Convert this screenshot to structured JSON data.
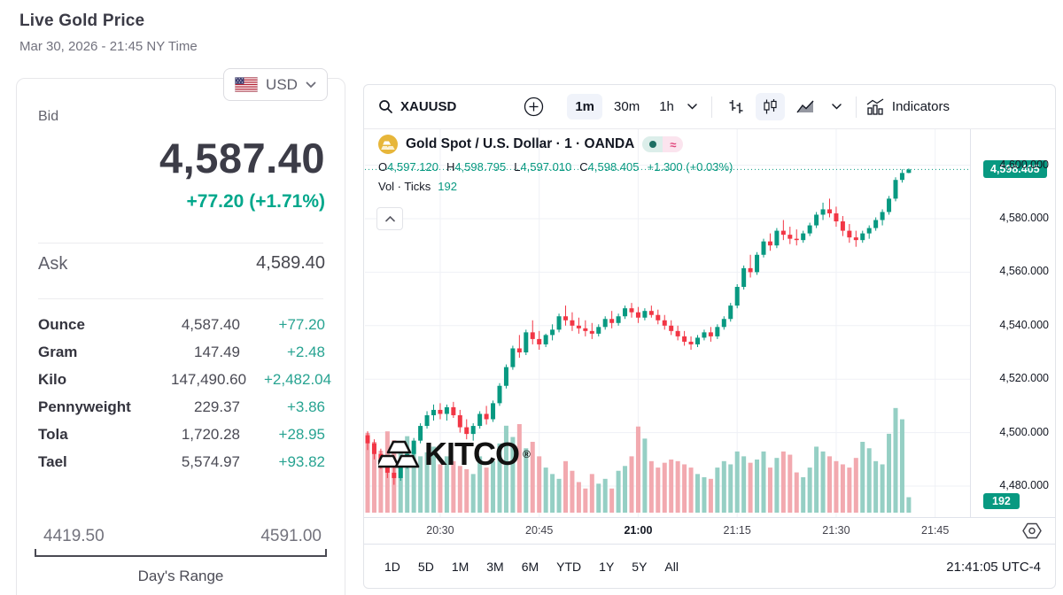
{
  "header": {
    "title": "Live Gold Price",
    "subtitle": "Mar 30, 2026 - 21:45 NY Time"
  },
  "currency_selector": {
    "label": "USD"
  },
  "quote": {
    "bid_label": "Bid",
    "bid": "4,587.40",
    "change": "+77.20 (+1.71%)",
    "ask_label": "Ask",
    "ask": "4,589.40",
    "units": [
      {
        "name": "Ounce",
        "value": "4,587.40",
        "change": "+77.20"
      },
      {
        "name": "Gram",
        "value": "147.49",
        "change": "+2.48"
      },
      {
        "name": "Kilo",
        "value": "147,490.60",
        "change": "+2,482.04"
      },
      {
        "name": "Pennyweight",
        "value": "229.37",
        "change": "+3.86"
      },
      {
        "name": "Tola",
        "value": "1,720.28",
        "change": "+28.95"
      },
      {
        "name": "Tael",
        "value": "5,574.97",
        "change": "+93.82"
      }
    ],
    "range": {
      "low": "4419.50",
      "high": "4591.00",
      "label": "Day's Range"
    }
  },
  "chart": {
    "toolbar": {
      "symbol": "XAUUSD",
      "intervals": [
        "1m",
        "30m",
        "1h"
      ],
      "active_interval": "1m",
      "indicators_label": "Indicators"
    },
    "legend": {
      "title": "Gold Spot / U.S. Dollar · 1 · OANDA",
      "approx_badge": "≈",
      "ohlc_items": [
        {
          "k": "O",
          "v": "4,597.120"
        },
        {
          "k": "H",
          "v": "4,598.795"
        },
        {
          "k": "L",
          "v": "4,597.010"
        },
        {
          "k": "C",
          "v": "4,598.405"
        }
      ],
      "change": "+1.300 (+0.03%)",
      "vol_label": "Vol · Ticks",
      "vol_value": "192"
    },
    "watermark": {
      "text": "KITCO",
      "reg": "®"
    },
    "price_axis": {
      "labels": [
        "4,600.000",
        "4,580.000",
        "4,560.000",
        "4,540.000",
        "4,520.000",
        "4,500.000",
        "4,480.000"
      ],
      "last_price": "4,598.405",
      "vol_badge": "192"
    },
    "time_axis": [
      "20:30",
      "20:45",
      "21:00",
      "21:15",
      "21:30",
      "21:45"
    ],
    "bold_time": "21:00",
    "ranges": [
      "1D",
      "5D",
      "1M",
      "3M",
      "6M",
      "YTD",
      "1Y",
      "5Y",
      "All"
    ],
    "clock": "21:41:05 UTC-4"
  },
  "chart_data": {
    "type": "candlestick+volume",
    "symbol": "XAUUSD",
    "interval": "1m",
    "x_start": "20:19",
    "x_end": "21:41",
    "ylim": [
      4470,
      4605
    ],
    "price_gridlines": [
      4600,
      4580,
      4560,
      4540,
      4520,
      4500,
      4480
    ],
    "time_gridlines": [
      "20:30",
      "20:45",
      "21:00",
      "21:15",
      "21:30",
      "21:45"
    ],
    "last_close": 4598.405,
    "last_bar": {
      "o": 4597.12,
      "h": 4598.795,
      "l": 4597.01,
      "c": 4598.405,
      "ticks": 192
    },
    "candles": [
      [
        4499,
        4500.5,
        4493.5,
        4496
      ],
      [
        4496,
        4497.5,
        4490,
        4492
      ],
      [
        4492,
        4494,
        4486.5,
        4489
      ],
      [
        4489,
        4490.5,
        4483,
        4485
      ],
      [
        4485,
        4487,
        4480.5,
        4483
      ],
      [
        4483,
        4488.5,
        4482,
        4487.5
      ],
      [
        4487.5,
        4493,
        4486.5,
        4492
      ],
      [
        4492,
        4498,
        4491,
        4497
      ],
      [
        4497,
        4503.5,
        4496,
        4502.5
      ],
      [
        4502.5,
        4508,
        4501.5,
        4506.5
      ],
      [
        4506.5,
        4510.5,
        4504.5,
        4508.5
      ],
      [
        4508.5,
        4511,
        4505,
        4507
      ],
      [
        4507,
        4510.5,
        4504.5,
        4509.5
      ],
      [
        4509.5,
        4511.5,
        4505.5,
        4506.5
      ],
      [
        4506.5,
        4508.5,
        4500,
        4502
      ],
      [
        4502,
        4505,
        4497.5,
        4499.5
      ],
      [
        4499.5,
        4503.5,
        4497,
        4502.5
      ],
      [
        4502.5,
        4508,
        4501.5,
        4507
      ],
      [
        4507,
        4510,
        4503,
        4505
      ],
      [
        4505,
        4512,
        4504,
        4511
      ],
      [
        4511,
        4518.5,
        4510,
        4517.5
      ],
      [
        4517.5,
        4525.5,
        4516.5,
        4524.5
      ],
      [
        4524.5,
        4532.5,
        4523.5,
        4531.5
      ],
      [
        4531.5,
        4536.5,
        4528,
        4530
      ],
      [
        4530,
        4538.5,
        4529,
        4537.5
      ],
      [
        4537.5,
        4542,
        4533,
        4535
      ],
      [
        4535,
        4538,
        4531,
        4533
      ],
      [
        4533,
        4537,
        4532,
        4536.5
      ],
      [
        4536.5,
        4540.5,
        4534.5,
        4538.5
      ],
      [
        4538.5,
        4544.5,
        4537.5,
        4543.5
      ],
      [
        4543.5,
        4547.5,
        4540,
        4542
      ],
      [
        4542,
        4545,
        4538,
        4540
      ],
      [
        4540,
        4543,
        4537,
        4539
      ],
      [
        4539,
        4542,
        4536,
        4538
      ],
      [
        4538,
        4541,
        4535,
        4537
      ],
      [
        4537,
        4540.5,
        4536,
        4539.5
      ],
      [
        4539.5,
        4543.5,
        4538.5,
        4542.5
      ],
      [
        4542.5,
        4545.5,
        4539,
        4541
      ],
      [
        4541,
        4544.5,
        4540,
        4543.5
      ],
      [
        4543.5,
        4547.5,
        4542.5,
        4546.5
      ],
      [
        4546.5,
        4548.5,
        4543,
        4545
      ],
      [
        4545,
        4547,
        4541,
        4543
      ],
      [
        4543,
        4546.5,
        4542,
        4545.5
      ],
      [
        4545.5,
        4547.5,
        4543,
        4544
      ],
      [
        4544,
        4546,
        4540.5,
        4542
      ],
      [
        4542,
        4544,
        4538.5,
        4540
      ],
      [
        4540,
        4542,
        4536.5,
        4538
      ],
      [
        4538,
        4540,
        4534.5,
        4536
      ],
      [
        4536,
        4538,
        4532.5,
        4534
      ],
      [
        4534,
        4536,
        4531,
        4533
      ],
      [
        4533,
        4536.5,
        4532,
        4535.5
      ],
      [
        4535.5,
        4538.5,
        4534.5,
        4537.5
      ],
      [
        4537.5,
        4539.5,
        4534,
        4536
      ],
      [
        4536,
        4540.5,
        4535,
        4539.5
      ],
      [
        4539.5,
        4543.5,
        4538.5,
        4542.5
      ],
      [
        4542.5,
        4548.5,
        4541.5,
        4547.5
      ],
      [
        4547.5,
        4555.5,
        4546.5,
        4554.5
      ],
      [
        4554.5,
        4562.5,
        4553.5,
        4561.5
      ],
      [
        4561.5,
        4566.5,
        4558,
        4560
      ],
      [
        4560,
        4567.5,
        4559,
        4566.5
      ],
      [
        4566.5,
        4572.5,
        4565.5,
        4571.5
      ],
      [
        4571.5,
        4574.5,
        4568,
        4570
      ],
      [
        4570,
        4576.5,
        4569,
        4575.5
      ],
      [
        4575.5,
        4579.5,
        4572,
        4574
      ],
      [
        4574,
        4577,
        4570.5,
        4572.5
      ],
      [
        4572.5,
        4576,
        4570,
        4572
      ],
      [
        4572,
        4575.5,
        4571,
        4574.5
      ],
      [
        4574.5,
        4578.5,
        4573.5,
        4577.5
      ],
      [
        4577.5,
        4582.5,
        4576.5,
        4581.5
      ],
      [
        4581.5,
        4586,
        4579.5,
        4583.5
      ],
      [
        4583.5,
        4587.5,
        4580.5,
        4582
      ],
      [
        4582,
        4584.5,
        4577,
        4579
      ],
      [
        4579,
        4581,
        4573.5,
        4575.5
      ],
      [
        4575.5,
        4578,
        4571,
        4573
      ],
      [
        4573,
        4575.5,
        4569.5,
        4572
      ],
      [
        4572,
        4575.5,
        4571,
        4574.5
      ],
      [
        4574.5,
        4577.5,
        4572.5,
        4576.5
      ],
      [
        4576.5,
        4580.5,
        4575.5,
        4579.5
      ],
      [
        4579.5,
        4583.5,
        4577.5,
        4582.5
      ],
      [
        4582.5,
        4588.5,
        4581.5,
        4587.5
      ],
      [
        4587.5,
        4595.5,
        4586.5,
        4594.5
      ],
      [
        4594.5,
        4598.5,
        4593.5,
        4597.1
      ],
      [
        4597.12,
        4598.795,
        4597.01,
        4598.405
      ]
    ],
    "volumes": [
      990,
      880,
      770,
      1010,
      900,
      850,
      950,
      820,
      700,
      750,
      820,
      600,
      700,
      640,
      580,
      540,
      480,
      700,
      560,
      640,
      860,
      1080,
      940,
      1100,
      800,
      880,
      700,
      560,
      480,
      420,
      640,
      520,
      380,
      300,
      480,
      360,
      420,
      300,
      520,
      580,
      700,
      1070,
      920,
      640,
      560,
      620,
      660,
      640,
      600,
      560,
      480,
      440,
      420,
      560,
      640,
      600,
      760,
      700,
      620,
      660,
      760,
      560,
      680,
      760,
      720,
      500,
      440,
      560,
      820,
      760,
      700,
      640,
      600,
      560,
      680,
      880,
      800,
      640,
      600,
      980,
      1300,
      1160,
      192
    ],
    "colors": {
      "up": "#089981",
      "down": "#f23645",
      "vol_up": "#95cfc4",
      "vol_down": "#f2a9af",
      "grid": "#eff1f6"
    },
    "legend_position": "top-left",
    "grid": true
  }
}
